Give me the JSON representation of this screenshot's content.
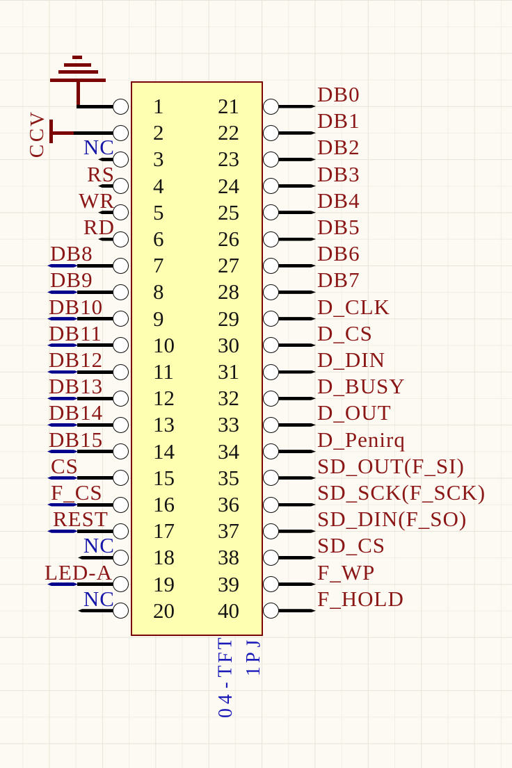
{
  "palette": {
    "maroon": "#8B1616",
    "blue": "#1616A8",
    "wire_black": "#000000",
    "wire_blue": "#00008C",
    "symbol_red": "#7B0505",
    "box_fill": "#FFFFB2",
    "box_border": "#7B0304",
    "background": "#FCFAF2"
  },
  "component": {
    "designator": "JP1",
    "part": "TFT-40"
  },
  "power": {
    "vcc": "VCC"
  },
  "pins": {
    "left": [
      {
        "num": "1",
        "label": "",
        "wire": "gnd"
      },
      {
        "num": "2",
        "label": "",
        "wire": "vcc"
      },
      {
        "num": "3",
        "label": "NC",
        "color": "blue",
        "wire": "short",
        "align": "right"
      },
      {
        "num": "4",
        "label": "RS",
        "color": "maroon",
        "wire": "short",
        "align": "right"
      },
      {
        "num": "5",
        "label": "WR",
        "color": "maroon",
        "wire": "short",
        "align": "right"
      },
      {
        "num": "6",
        "label": "RD",
        "color": "maroon",
        "wire": "short",
        "align": "right"
      },
      {
        "num": "7",
        "label": "DB8",
        "color": "maroon",
        "wire": "bus",
        "align": "left",
        "x": 72
      },
      {
        "num": "8",
        "label": "DB9",
        "color": "maroon",
        "wire": "bus",
        "align": "left",
        "x": 72
      },
      {
        "num": "9",
        "label": "DB10",
        "color": "maroon",
        "wire": "bus",
        "align": "left",
        "x": 70
      },
      {
        "num": "10",
        "label": "DB11",
        "color": "maroon",
        "wire": "bus",
        "align": "left",
        "x": 70
      },
      {
        "num": "11",
        "label": "DB12",
        "color": "maroon",
        "wire": "bus",
        "align": "left",
        "x": 70
      },
      {
        "num": "12",
        "label": "DB13",
        "color": "maroon",
        "wire": "bus",
        "align": "left",
        "x": 70
      },
      {
        "num": "13",
        "label": "DB14",
        "color": "maroon",
        "wire": "bus",
        "align": "left",
        "x": 70
      },
      {
        "num": "14",
        "label": "DB15",
        "color": "maroon",
        "wire": "bus",
        "align": "left",
        "x": 70
      },
      {
        "num": "15",
        "label": "CS",
        "color": "maroon",
        "wire": "bus",
        "align": "left",
        "x": 73
      },
      {
        "num": "16",
        "label": "F_CS",
        "color": "maroon",
        "wire": "bus",
        "align": "left",
        "x": 73
      },
      {
        "num": "17",
        "label": "REST",
        "color": "maroon",
        "wire": "bus",
        "align": "left",
        "x": 76
      },
      {
        "num": "18",
        "label": "NC",
        "color": "blue",
        "wire": "mid",
        "align": "right"
      },
      {
        "num": "19",
        "label": "LED-A",
        "color": "maroon",
        "wire": "bus",
        "align": "left",
        "x": 64
      },
      {
        "num": "20",
        "label": "NC",
        "color": "blue",
        "wire": "mid",
        "align": "right"
      }
    ],
    "right": [
      {
        "num": "21",
        "label": "DB0"
      },
      {
        "num": "22",
        "label": "DB1"
      },
      {
        "num": "23",
        "label": "DB2"
      },
      {
        "num": "24",
        "label": "DB3"
      },
      {
        "num": "25",
        "label": "DB4"
      },
      {
        "num": "26",
        "label": "DB5"
      },
      {
        "num": "27",
        "label": "DB6"
      },
      {
        "num": "28",
        "label": "DB7"
      },
      {
        "num": "29",
        "label": "D_CLK"
      },
      {
        "num": "30",
        "label": "D_CS"
      },
      {
        "num": "31",
        "label": "D_DIN"
      },
      {
        "num": "32",
        "label": "D_BUSY"
      },
      {
        "num": "33",
        "label": "D_OUT"
      },
      {
        "num": "34",
        "label": "D_Penirq"
      },
      {
        "num": "35",
        "label": "SD_OUT(F_SI)"
      },
      {
        "num": "36",
        "label": "SD_SCK(F_SCK)"
      },
      {
        "num": "37",
        "label": "SD_DIN(F_SO)"
      },
      {
        "num": "38",
        "label": "SD_CS"
      },
      {
        "num": "39",
        "label": "F_WP"
      },
      {
        "num": "40",
        "label": "F_HOLD"
      }
    ]
  }
}
